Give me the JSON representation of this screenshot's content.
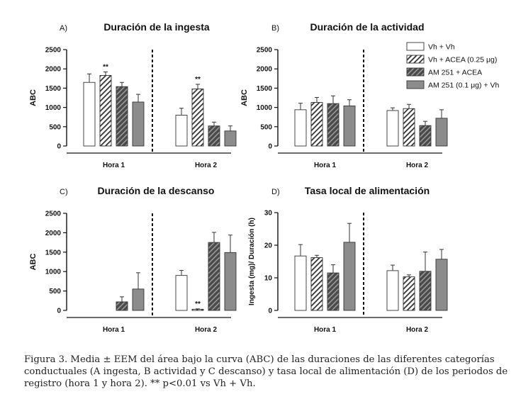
{
  "colors": {
    "vh_vh": "#ffffff",
    "am251_acea": "#5a5a5a",
    "am251_vh": "#8c8c8c",
    "edge": "#333333",
    "hatch": "#333333"
  },
  "legend": [
    {
      "label": "Vh + Vh",
      "fill": "white"
    },
    {
      "label": "Vh + ACEA (0.25 μg)",
      "fill": "hatch-light"
    },
    {
      "label": "AM 251 + ACEA",
      "fill": "hatch-dark"
    },
    {
      "label": "AM 251 (0.1 μg) + Vh",
      "fill": "gray"
    }
  ],
  "chart_data": [
    {
      "type": "bar",
      "panel_label": "A)",
      "title": "Duración de la ingesta",
      "ylabel": "ABC",
      "ylim": [
        0,
        2500
      ],
      "yticks": [
        "0",
        "500",
        "1000",
        "1500",
        "2000",
        "2500"
      ],
      "categories": [
        "Hora 1",
        "Hora 2"
      ],
      "series": [
        {
          "name": "Vh + Vh",
          "values": [
            1650,
            800
          ],
          "errors": [
            220,
            180
          ]
        },
        {
          "name": "Vh + ACEA (0.25 μg)",
          "values": [
            1830,
            1480
          ],
          "errors": [
            90,
            120
          ],
          "significance": [
            "**",
            "**"
          ]
        },
        {
          "name": "AM 251 + ACEA",
          "values": [
            1540,
            520
          ],
          "errors": [
            110,
            100
          ]
        },
        {
          "name": "AM 251 (0.1 μg) + Vh",
          "values": [
            1140,
            390
          ],
          "errors": [
            200,
            130
          ]
        }
      ]
    },
    {
      "type": "bar",
      "panel_label": "B)",
      "title": "Duración de la actividad",
      "ylabel": "ABC",
      "ylim": [
        0,
        2500
      ],
      "yticks": [
        "0",
        "500",
        "1000",
        "1500",
        "2000",
        "2500"
      ],
      "categories": [
        "Hora 1",
        "Hora 2"
      ],
      "series": [
        {
          "name": "Vh + Vh",
          "values": [
            940,
            920
          ],
          "errors": [
            170,
            70
          ]
        },
        {
          "name": "Vh + ACEA (0.25 μg)",
          "values": [
            1130,
            970
          ],
          "errors": [
            130,
            110
          ]
        },
        {
          "name": "AM 251 + ACEA",
          "values": [
            1100,
            530
          ],
          "errors": [
            200,
            110
          ]
        },
        {
          "name": "AM 251 (0.1 μg) + Vh",
          "values": [
            1040,
            720
          ],
          "errors": [
            160,
            220
          ]
        }
      ]
    },
    {
      "type": "bar",
      "panel_label": "C)",
      "title": "Duración de la descanso",
      "ylabel": "ABC",
      "ylim": [
        0,
        2500
      ],
      "yticks": [
        "0",
        "500",
        "1000",
        "1500",
        "2000",
        "2500"
      ],
      "categories": [
        "Hora 1",
        "Hora 2"
      ],
      "series": [
        {
          "name": "Vh + Vh",
          "values": [
            0,
            900
          ],
          "errors": [
            0,
            130
          ]
        },
        {
          "name": "Vh + ACEA (0.25 μg)",
          "values": [
            0,
            30
          ],
          "errors": [
            0,
            10
          ],
          "significance": [
            "",
            "**"
          ]
        },
        {
          "name": "AM 251 + ACEA",
          "values": [
            220,
            1750
          ],
          "errors": [
            130,
            260
          ]
        },
        {
          "name": "AM 251 (0.1 μg) + Vh",
          "values": [
            550,
            1490
          ],
          "errors": [
            420,
            450
          ]
        }
      ]
    },
    {
      "type": "bar",
      "panel_label": "D)",
      "title": "Tasa local de alimentación",
      "ylabel": "Ingesta (mg)/ Duración (h)",
      "ylim": [
        0,
        30
      ],
      "yticks": [
        "0",
        "10",
        "20",
        "30"
      ],
      "categories": [
        "Hora 1",
        "Hora 2"
      ],
      "series": [
        {
          "name": "Vh + Vh",
          "values": [
            16.7,
            12.2
          ],
          "errors": [
            3.5,
            1.7
          ]
        },
        {
          "name": "Vh + ACEA (0.25 μg)",
          "values": [
            16.2,
            10.3
          ],
          "errors": [
            0.7,
            0.6
          ]
        },
        {
          "name": "AM 251 + ACEA",
          "values": [
            11.5,
            12.0
          ],
          "errors": [
            2.5,
            5.9
          ]
        },
        {
          "name": "AM 251 (0.1 μg) + Vh",
          "values": [
            20.9,
            15.7
          ],
          "errors": [
            5.8,
            3.0
          ]
        }
      ]
    }
  ],
  "caption": "Figura 3. Media ± EEM del área bajo la curva (ABC) de las duraciones de las diferentes categorías conductuales (A ingesta, B actividad y C descanso) y tasa local de alimentación (D) de los periodos de registro (hora 1 y hora 2). ** p<0.01 vs Vh + Vh."
}
